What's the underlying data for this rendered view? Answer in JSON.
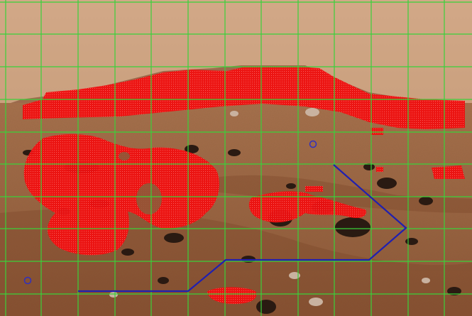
{
  "scene": {
    "type": "rover-navigation-hazard-map",
    "terrain": "martian-surface",
    "grid_lines": "on",
    "colors": {
      "sky_top": "#d2a887",
      "sky_bottom": "#caa07e",
      "ground_near": "#8a5434",
      "ground_far": "#a7714d",
      "hill": "#9c6a4c",
      "grid": "#3ad13a",
      "hazard": "#f01010",
      "path": "#2020b0",
      "waypoint": "#3030c0",
      "rock_dark": "#2a1a12",
      "rock_light": "#c9b2a0"
    }
  }
}
